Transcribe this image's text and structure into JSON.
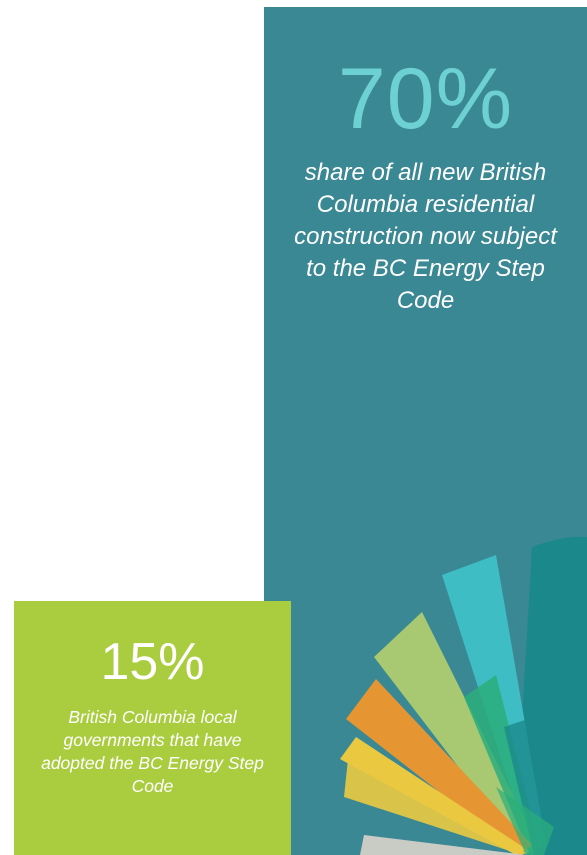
{
  "colors": {
    "teal_panel": "#3a8894",
    "teal_stat": "#6dd0d2",
    "green_panel": "#a9cd3f",
    "text": "#ffffff",
    "fan_segments": [
      "#b8d36b",
      "#3fc0c8",
      "#f0962e",
      "#f4cd3c",
      "#2bb07a",
      "#1a8a8c",
      "#d0d0c8"
    ]
  },
  "stat_main": {
    "value": "70%",
    "description": "share of all new British Columbia residential construction now subject to the BC Energy Step Code"
  },
  "stat_secondary": {
    "value": "15%",
    "description": "British Columbia local governments that have adopted the BC Energy Step Code"
  },
  "decoration": {
    "icon": "color-fan-icon"
  }
}
